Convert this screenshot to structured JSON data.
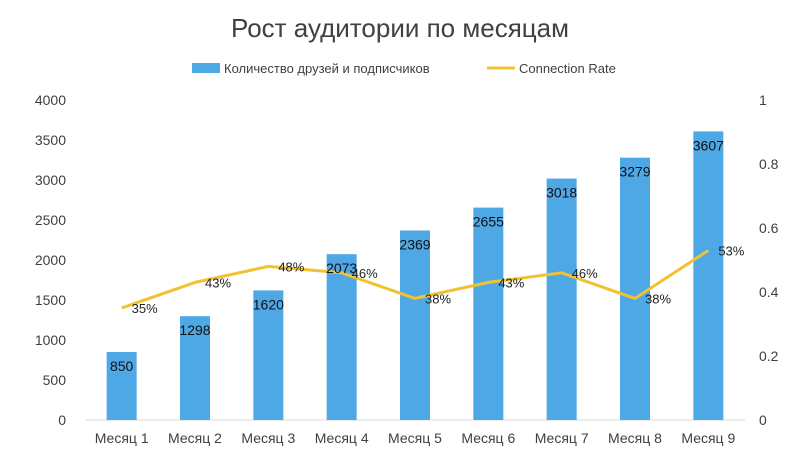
{
  "chart_data": {
    "type": "bar",
    "title": "Рост аудитории по месяцам",
    "categories": [
      "Месяц 1",
      "Месяц 2",
      "Месяц 3",
      "Месяц 4",
      "Месяц 5",
      "Месяц 6",
      "Месяц 7",
      "Месяц 8",
      "Месяц 9"
    ],
    "series": [
      {
        "name": "Количество друзей и подписчиков",
        "type": "bar",
        "axis": "left",
        "color": "#4fa8e6",
        "values": [
          850,
          1298,
          1620,
          2073,
          2369,
          2655,
          3018,
          3279,
          3607
        ],
        "labels": [
          "850",
          "1298",
          "1620",
          "2073",
          "2369",
          "2655",
          "3018",
          "3279",
          "3607"
        ]
      },
      {
        "name": "Connection Rate",
        "type": "line",
        "axis": "right",
        "color": "#f2c232",
        "values": [
          0.35,
          0.43,
          0.48,
          0.46,
          0.38,
          0.43,
          0.46,
          0.38,
          0.53
        ],
        "labels": [
          "35%",
          "43%",
          "48%",
          "46%",
          "38%",
          "43%",
          "46%",
          "38%",
          "53%"
        ]
      }
    ],
    "y_left": {
      "min": 0,
      "max": 4000,
      "ticks": [
        0,
        500,
        1000,
        1500,
        2000,
        2500,
        3000,
        3500,
        4000
      ]
    },
    "y_right": {
      "min": 0,
      "max": 1,
      "ticks": [
        "0",
        "0.2",
        "0.4",
        "0.6",
        "0.8",
        "1"
      ]
    },
    "legend_position": "top",
    "grid": false
  }
}
